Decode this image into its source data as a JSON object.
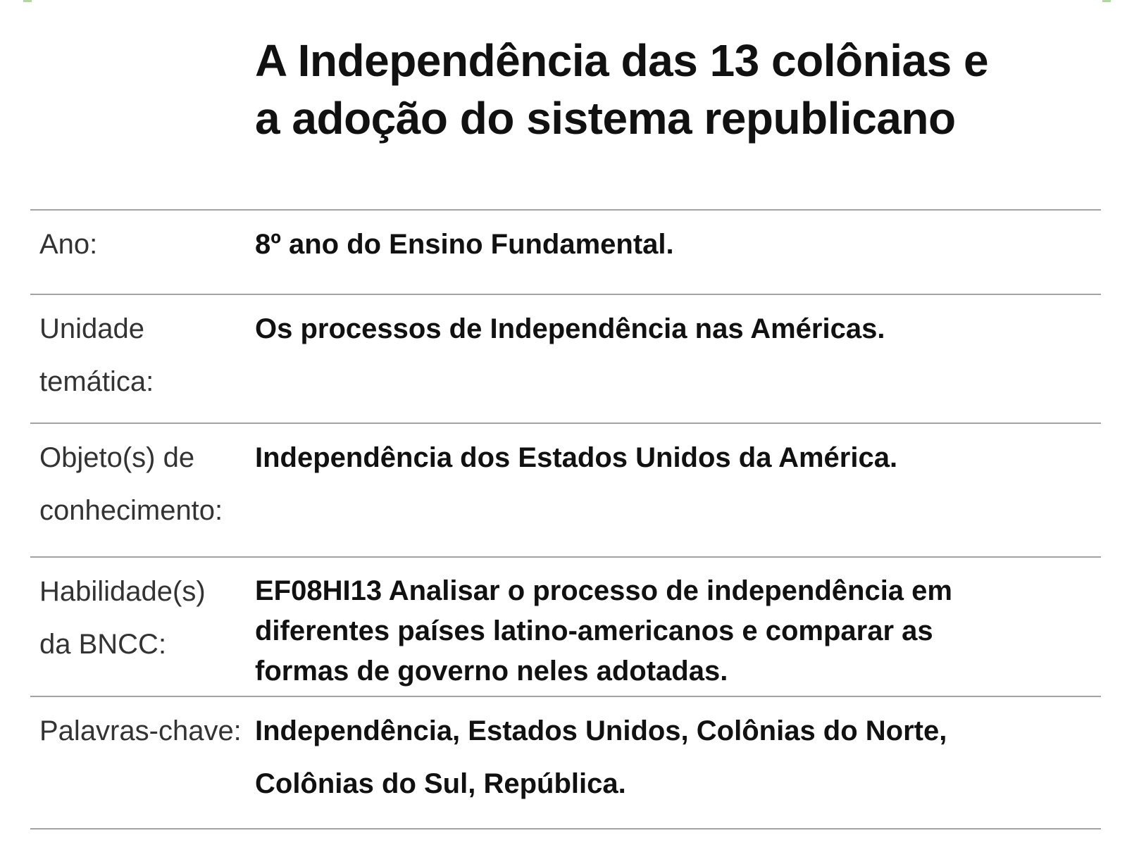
{
  "colors": {
    "page_background": "#ffffff",
    "title_text": "#111111",
    "label_text": "#333333",
    "value_text": "#111111",
    "divider": "#a3a3a3",
    "clipped_fragment_green": "#b4d6a4"
  },
  "title": {
    "full": "A Independência das 13 colônias e a adoção do sistema republicano",
    "line1": "A Independência das 13 colônias e",
    "line2": "a adoção do sistema republicano"
  },
  "table": {
    "rows": [
      {
        "label": "Ano:",
        "value": "8º ano do Ensino Fundamental."
      },
      {
        "label": "Unidade\ntemática:",
        "value": "Os processos de Independência nas Américas."
      },
      {
        "label": "Objeto(s) de\nconhecimento:",
        "value": "Independência dos Estados Unidos da América."
      },
      {
        "label": "Habilidade(s)\nda BNCC:",
        "value": "EF08HI13 Analisar o processo de independência em\ndiferentes países latino-americanos e comparar as\nformas de governo neles adotadas."
      },
      {
        "label": "Palavras-chave:",
        "value": "Independência, Estados Unidos, Colônias do Norte,\nColônias do Sul, República."
      }
    ]
  }
}
